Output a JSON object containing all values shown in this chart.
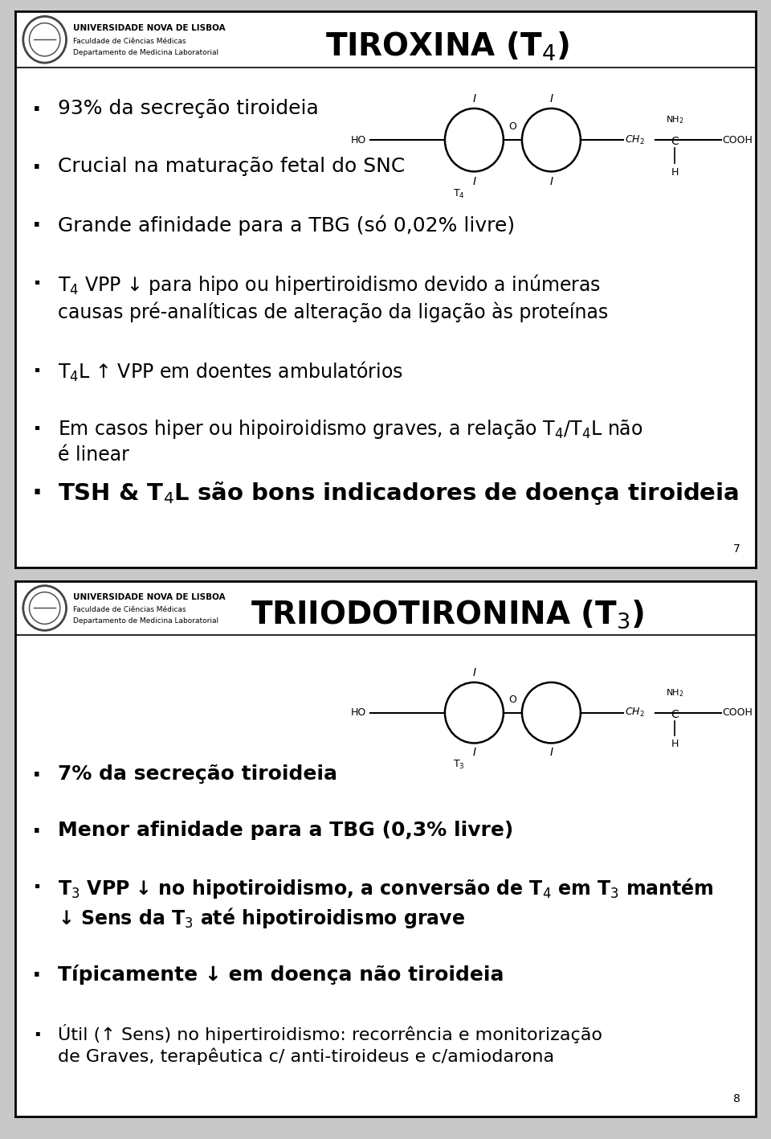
{
  "bg_color": "#c8c8c8",
  "slide1": {
    "title": "TIROXINA (T$_4$)",
    "header_univ": "UNIVERSIDADE NOVA DE LISBOA",
    "header_fac": "Faculdade de Ciências Médicas",
    "header_dep": "Departamento de Medicina Laboratorial",
    "bullets": [
      "93% da secreção tiroideia",
      "Crucial na maturação fetal do SNC",
      "Grande afinidade para a TBG (só 0,02% livre)",
      "T$_4$ VPP ↓ para hipo ou hipertiroidismo devido a inúmeras\ncausas pré-analíticas de alteração da ligação às proteínas",
      "T$_4$L ↑ VPP em doentes ambulatórios",
      "Em casos hiper ou hipoiroidismo graves, a relação T$_4$/T$_4$L não\né linear",
      "TSH & T$_4$L são bons indicadores de doença tiroideia"
    ],
    "bullet_sizes": [
      18,
      18,
      18,
      17,
      17,
      17,
      21
    ],
    "bullet_bold": [
      false,
      false,
      false,
      false,
      false,
      false,
      true
    ],
    "page_number": "7"
  },
  "slide2": {
    "title": "TRIIODOTIRONINA (T$_3$)",
    "header_univ": "UNIVERSIDADE NOVA DE LISBOA",
    "header_fac": "Faculdade de Ciências Médicas",
    "header_dep": "Departamento de Medicina Laboratorial",
    "bullets": [
      "7% da secreção tiroideia",
      "Menor afinidade para a TBG (0,3% livre)",
      "T$_3$ VPP ↓ no hipotiroidismo, a conversão de T$_4$ em T$_3$ mantém\n↓ Sens da T$_3$ até hipotiroidismo grave",
      "Típicamente ↓ em doença não tiroideia",
      "Útil (↑ Sens) no hipertiroidismo: recorrência e monitorização\nde Graves, terapêutica c/ anti-tiroideus e c/amiodarona"
    ],
    "bullet_sizes": [
      18,
      18,
      17,
      18,
      16
    ],
    "bullet_bold": [
      true,
      true,
      true,
      true,
      false
    ],
    "page_number": "8"
  }
}
